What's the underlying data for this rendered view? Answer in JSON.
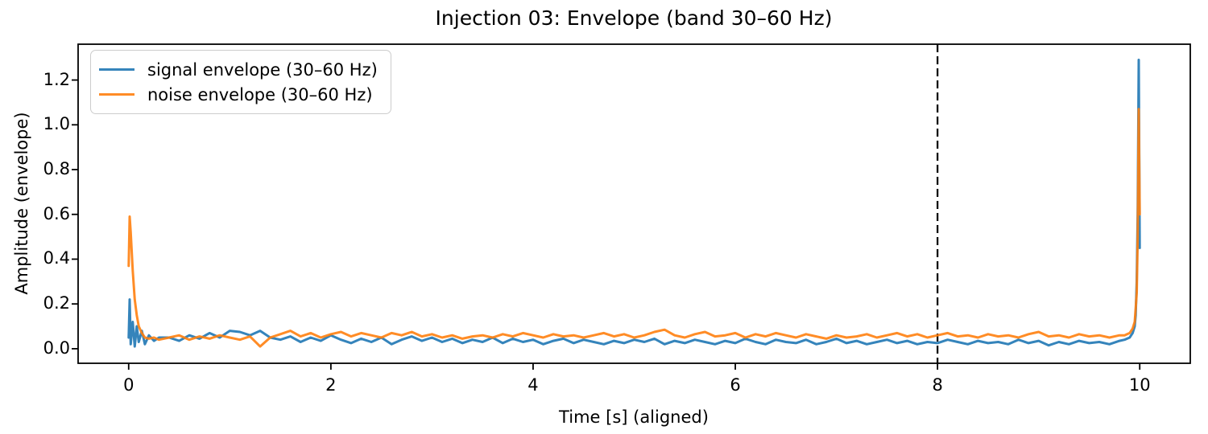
{
  "figure": {
    "title": "Injection 03: Envelope (band 30–60 Hz)",
    "xlabel": "Time [s] (aligned)",
    "ylabel": "Amplitude (envelope)"
  },
  "chart_data": {
    "type": "line",
    "title": "Injection 03: Envelope (band 30–60 Hz)",
    "xlabel": "Time [s] (aligned)",
    "ylabel": "Amplitude (envelope)",
    "xlim": [
      -0.5,
      10.5
    ],
    "ylim": [
      -0.065,
      1.36
    ],
    "xticks": [
      0,
      2,
      4,
      6,
      8,
      10
    ],
    "xtick_labels": [
      "0",
      "2",
      "4",
      "6",
      "8",
      "10"
    ],
    "yticks": [
      0.0,
      0.2,
      0.4,
      0.6,
      0.8,
      1.0,
      1.2
    ],
    "ytick_labels": [
      "0.0",
      "0.2",
      "0.4",
      "0.6",
      "0.8",
      "1.0",
      "1.2"
    ],
    "grid": false,
    "legend_position": "upper left",
    "annotations": [
      {
        "type": "vline",
        "x": 8,
        "style": "dashed",
        "color": "#000000"
      }
    ],
    "x": [
      0,
      0.01,
      0.02,
      0.04,
      0.06,
      0.08,
      0.1,
      0.13,
      0.16,
      0.2,
      0.25,
      0.3,
      0.4,
      0.5,
      0.6,
      0.7,
      0.8,
      0.9,
      1.0,
      1.1,
      1.2,
      1.3,
      1.4,
      1.5,
      1.6,
      1.7,
      1.8,
      1.9,
      2.0,
      2.1,
      2.2,
      2.3,
      2.4,
      2.5,
      2.6,
      2.7,
      2.8,
      2.9,
      3.0,
      3.1,
      3.2,
      3.3,
      3.4,
      3.5,
      3.6,
      3.7,
      3.8,
      3.9,
      4.0,
      4.1,
      4.2,
      4.3,
      4.4,
      4.5,
      4.6,
      4.7,
      4.8,
      4.9,
      5.0,
      5.1,
      5.2,
      5.3,
      5.4,
      5.5,
      5.6,
      5.7,
      5.8,
      5.9,
      6.0,
      6.1,
      6.2,
      6.3,
      6.4,
      6.5,
      6.6,
      6.7,
      6.8,
      6.9,
      7.0,
      7.1,
      7.2,
      7.3,
      7.4,
      7.5,
      7.6,
      7.7,
      7.8,
      7.9,
      8.0,
      8.1,
      8.2,
      8.3,
      8.4,
      8.5,
      8.6,
      8.7,
      8.8,
      8.9,
      9.0,
      9.1,
      9.2,
      9.3,
      9.4,
      9.5,
      9.6,
      9.7,
      9.8,
      9.85,
      9.9,
      9.93,
      9.95,
      9.96,
      9.97,
      9.98,
      9.99,
      10.0
    ],
    "series": [
      {
        "name": "signal envelope (30–60 Hz)",
        "color": "#1f77b4",
        "values": [
          0.05,
          0.22,
          0.02,
          0.12,
          0.01,
          0.1,
          0.03,
          0.08,
          0.02,
          0.06,
          0.035,
          0.05,
          0.05,
          0.035,
          0.06,
          0.045,
          0.07,
          0.05,
          0.08,
          0.075,
          0.06,
          0.08,
          0.05,
          0.04,
          0.055,
          0.03,
          0.05,
          0.035,
          0.06,
          0.04,
          0.025,
          0.045,
          0.03,
          0.05,
          0.02,
          0.04,
          0.055,
          0.035,
          0.05,
          0.03,
          0.045,
          0.025,
          0.04,
          0.03,
          0.05,
          0.025,
          0.045,
          0.03,
          0.04,
          0.02,
          0.035,
          0.045,
          0.025,
          0.04,
          0.03,
          0.02,
          0.035,
          0.025,
          0.04,
          0.03,
          0.045,
          0.02,
          0.035,
          0.025,
          0.04,
          0.03,
          0.02,
          0.035,
          0.025,
          0.045,
          0.03,
          0.02,
          0.04,
          0.03,
          0.025,
          0.04,
          0.02,
          0.03,
          0.045,
          0.025,
          0.035,
          0.02,
          0.03,
          0.04,
          0.025,
          0.035,
          0.02,
          0.03,
          0.025,
          0.04,
          0.03,
          0.02,
          0.035,
          0.025,
          0.03,
          0.02,
          0.04,
          0.025,
          0.035,
          0.015,
          0.03,
          0.02,
          0.035,
          0.025,
          0.03,
          0.02,
          0.035,
          0.04,
          0.05,
          0.07,
          0.1,
          0.15,
          0.3,
          0.6,
          1.29,
          0.45
        ]
      },
      {
        "name": "noise envelope (30–60 Hz)",
        "color": "#ff7f0e",
        "values": [
          0.37,
          0.59,
          0.52,
          0.35,
          0.22,
          0.15,
          0.1,
          0.07,
          0.05,
          0.045,
          0.05,
          0.04,
          0.05,
          0.06,
          0.04,
          0.055,
          0.045,
          0.06,
          0.05,
          0.04,
          0.055,
          0.01,
          0.05,
          0.065,
          0.08,
          0.055,
          0.07,
          0.05,
          0.065,
          0.075,
          0.055,
          0.07,
          0.06,
          0.05,
          0.07,
          0.06,
          0.075,
          0.055,
          0.065,
          0.05,
          0.06,
          0.045,
          0.055,
          0.06,
          0.05,
          0.065,
          0.055,
          0.07,
          0.06,
          0.05,
          0.065,
          0.055,
          0.06,
          0.05,
          0.06,
          0.07,
          0.055,
          0.065,
          0.05,
          0.06,
          0.075,
          0.085,
          0.06,
          0.05,
          0.065,
          0.075,
          0.055,
          0.06,
          0.07,
          0.05,
          0.065,
          0.055,
          0.07,
          0.06,
          0.05,
          0.065,
          0.055,
          0.045,
          0.06,
          0.05,
          0.055,
          0.065,
          0.05,
          0.06,
          0.07,
          0.055,
          0.065,
          0.05,
          0.06,
          0.07,
          0.055,
          0.06,
          0.05,
          0.065,
          0.055,
          0.06,
          0.05,
          0.065,
          0.075,
          0.055,
          0.06,
          0.05,
          0.065,
          0.055,
          0.06,
          0.05,
          0.06,
          0.06,
          0.07,
          0.09,
          0.12,
          0.18,
          0.25,
          0.5,
          1.07,
          0.6
        ]
      }
    ]
  }
}
